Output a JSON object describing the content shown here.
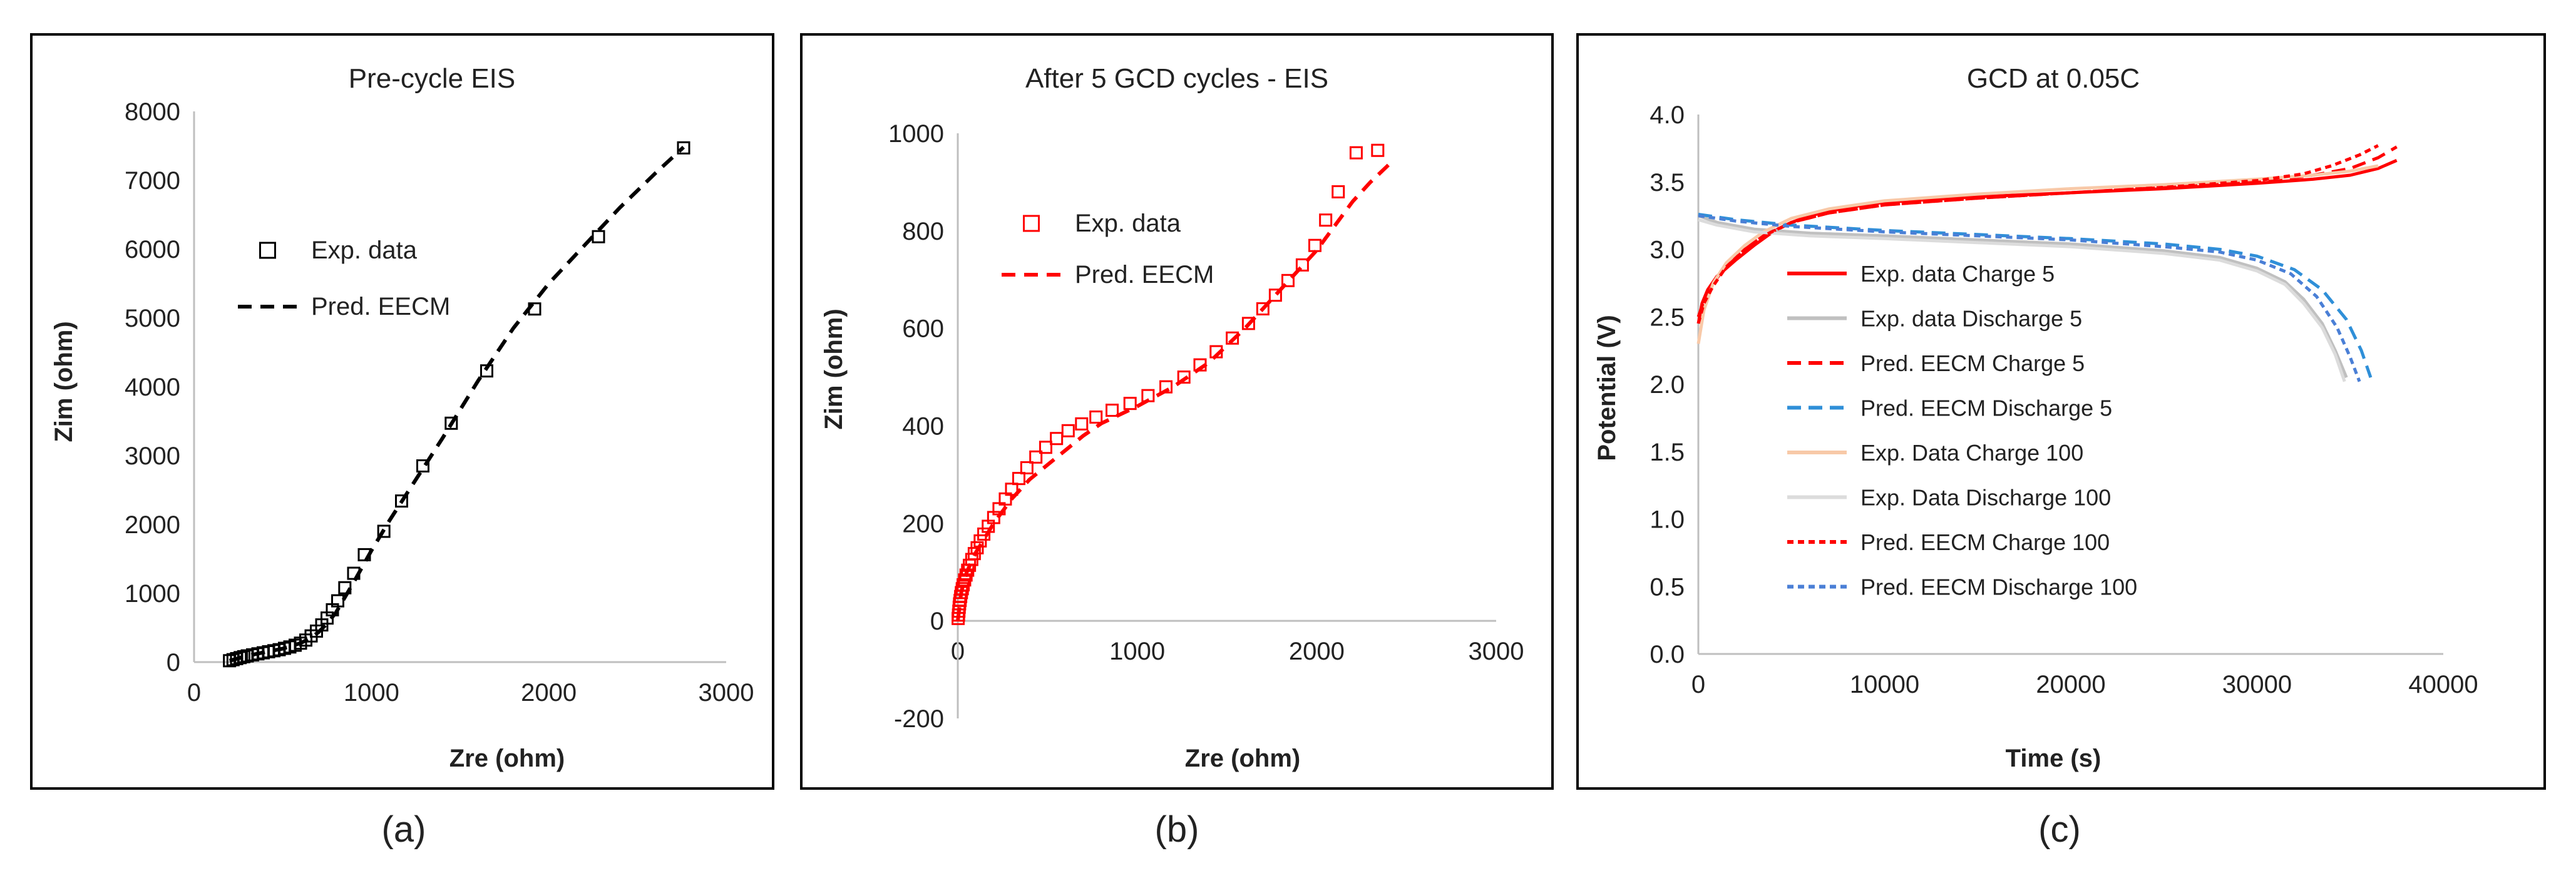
{
  "panel_labels": [
    "(a)",
    "(b)",
    "(c)"
  ],
  "chart_data": [
    {
      "type": "scatter",
      "title": "Pre-cycle EIS",
      "xlabel": "Zre (ohm)",
      "ylabel": "Zim (ohm)",
      "xlim": [
        0,
        3000
      ],
      "ylim": [
        0,
        8000
      ],
      "xticks": [
        0,
        1000,
        2000,
        3000
      ],
      "yticks": [
        0,
        1000,
        2000,
        3000,
        4000,
        5000,
        6000,
        7000,
        8000
      ],
      "legend_position": "upper-left",
      "series": [
        {
          "name": "Exp. data",
          "kind": "markers",
          "color": "#000000",
          "x": [
            200,
            220,
            240,
            260,
            280,
            300,
            330,
            360,
            390,
            420,
            450,
            480,
            510,
            540,
            570,
            600,
            630,
            660,
            690,
            720,
            750,
            780,
            810,
            850,
            900,
            960,
            1070,
            1170,
            1290,
            1450,
            1650,
            1920,
            2280,
            2760
          ],
          "y": [
            20,
            35,
            50,
            65,
            78,
            90,
            105,
            120,
            135,
            150,
            165,
            180,
            200,
            220,
            245,
            275,
            320,
            380,
            450,
            540,
            640,
            760,
            890,
            1080,
            1290,
            1560,
            1900,
            2340,
            2850,
            3470,
            4230,
            5130,
            6180,
            7470
          ]
        },
        {
          "name": "Pred. EECM",
          "kind": "dashed-line",
          "color": "#000000",
          "x": [
            200,
            300,
            400,
            500,
            600,
            650,
            700,
            750,
            800,
            900,
            1000,
            1100,
            1200,
            1400,
            1600,
            1800,
            2000,
            2200,
            2400,
            2600,
            2760
          ],
          "y": [
            20,
            90,
            145,
            195,
            275,
            340,
            430,
            560,
            720,
            1160,
            1620,
            2050,
            2450,
            3250,
            4080,
            4850,
            5500,
            6050,
            6600,
            7100,
            7480
          ]
        }
      ]
    },
    {
      "type": "scatter",
      "title": "After 5 GCD cycles - EIS",
      "xlabel": "Zre (ohm)",
      "ylabel": "Zim (ohm)",
      "xlim": [
        0,
        3000
      ],
      "ylim": [
        -200,
        1000
      ],
      "xticks": [
        0,
        1000,
        2000,
        3000
      ],
      "yticks": [
        -200,
        0,
        200,
        400,
        600,
        800,
        1000
      ],
      "legend_position": "upper-left",
      "series": [
        {
          "name": "Exp. data",
          "kind": "markers",
          "color": "#ff0000",
          "x": [
            2,
            4,
            6,
            8,
            10,
            13,
            16,
            20,
            25,
            30,
            38,
            46,
            55,
            65,
            78,
            92,
            108,
            125,
            145,
            170,
            200,
            230,
            265,
            300,
            340,
            385,
            435,
            490,
            550,
            615,
            690,
            770,
            860,
            960,
            1060,
            1160,
            1260,
            1350,
            1440,
            1530,
            1620,
            1700,
            1770,
            1840,
            1920,
            1990,
            2050,
            2120,
            2220,
            2340
          ],
          "y": [
            5,
            12,
            20,
            28,
            35,
            42,
            50,
            58,
            66,
            74,
            84,
            94,
            104,
            114,
            126,
            138,
            150,
            164,
            178,
            194,
            212,
            230,
            250,
            270,
            292,
            314,
            336,
            356,
            374,
            390,
            404,
            418,
            432,
            446,
            462,
            480,
            500,
            525,
            552,
            580,
            610,
            640,
            668,
            698,
            730,
            770,
            822,
            880,
            960,
            965
          ]
        },
        {
          "name": "Pred. EECM",
          "kind": "dashed-line",
          "color": "#ff0000",
          "x": [
            0,
            20,
            50,
            100,
            150,
            200,
            300,
            400,
            500,
            600,
            700,
            800,
            1000,
            1200,
            1400,
            1600,
            1800,
            2000,
            2100,
            2200,
            2300,
            2400
          ],
          "y": [
            0,
            60,
            100,
            140,
            170,
            200,
            250,
            290,
            320,
            350,
            380,
            405,
            440,
            480,
            530,
            600,
            680,
            760,
            810,
            860,
            900,
            935
          ]
        }
      ]
    },
    {
      "type": "line",
      "title": "GCD at 0.05C",
      "xlabel": "Time (s)",
      "ylabel": "Potential (V)",
      "xlim": [
        0,
        40000
      ],
      "ylim": [
        0,
        4
      ],
      "xticks": [
        0,
        10000,
        20000,
        30000,
        40000
      ],
      "yticks": [
        "0.0",
        "0.5",
        "1.0",
        "1.5",
        "2.0",
        "2.5",
        "3.0",
        "3.5",
        "4.0"
      ],
      "legend_position": "lower-left",
      "series": [
        {
          "name": "Exp. data Charge 5",
          "color": "#ff0000",
          "dash": "solid",
          "x": [
            0,
            200,
            500,
            1000,
            1500,
            2000,
            3000,
            4000,
            5000,
            6000,
            8000,
            10000,
            15000,
            20000,
            25000,
            30000,
            33000,
            35000,
            36500,
            37500
          ],
          "y": [
            2.45,
            2.6,
            2.7,
            2.8,
            2.86,
            2.92,
            3.03,
            3.13,
            3.2,
            3.25,
            3.31,
            3.35,
            3.39,
            3.42,
            3.45,
            3.49,
            3.52,
            3.55,
            3.6,
            3.66
          ]
        },
        {
          "name": "Exp. data Discharge 5",
          "color": "#c0c0c0",
          "dash": "solid",
          "x": [
            0,
            1000,
            3000,
            6000,
            10000,
            15000,
            20000,
            25000,
            28000,
            30000,
            31500,
            32500,
            33500,
            34200,
            34800
          ],
          "y": [
            3.25,
            3.2,
            3.15,
            3.12,
            3.1,
            3.07,
            3.04,
            2.99,
            2.94,
            2.86,
            2.76,
            2.63,
            2.45,
            2.25,
            2.05
          ]
        },
        {
          "name": "Pred. EECM Charge 5",
          "color": "#ff0000",
          "dash": "long",
          "x": [
            0,
            300,
            800,
            1500,
            2500,
            3500,
            5000,
            7000,
            10000,
            15000,
            20000,
            25000,
            30000,
            33000,
            35000,
            36500,
            37500
          ],
          "y": [
            2.5,
            2.62,
            2.75,
            2.88,
            3.0,
            3.1,
            3.2,
            3.27,
            3.33,
            3.38,
            3.42,
            3.46,
            3.5,
            3.55,
            3.6,
            3.68,
            3.76
          ]
        },
        {
          "name": "Pred. EECM Discharge 5",
          "color": "#2f8fd8",
          "dash": "long",
          "x": [
            0,
            2000,
            5000,
            10000,
            15000,
            20000,
            25000,
            28000,
            30000,
            32000,
            33500,
            34800,
            35600,
            36100
          ],
          "y": [
            3.26,
            3.22,
            3.18,
            3.14,
            3.11,
            3.08,
            3.04,
            3.0,
            2.95,
            2.85,
            2.7,
            2.48,
            2.25,
            2.05
          ]
        },
        {
          "name": "Exp. Data Charge 100",
          "color": "#f8c9a8",
          "dash": "solid",
          "x": [
            0,
            300,
            800,
            1500,
            2500,
            3500,
            5000,
            7000,
            10000,
            15000,
            20000,
            25000,
            30000,
            33000,
            35000,
            36500
          ],
          "y": [
            2.3,
            2.55,
            2.75,
            2.9,
            3.03,
            3.13,
            3.23,
            3.3,
            3.36,
            3.41,
            3.45,
            3.48,
            3.52,
            3.55,
            3.58,
            3.62
          ]
        },
        {
          "name": "Exp. Data Discharge 100",
          "color": "#dcdcdc",
          "dash": "solid",
          "x": [
            0,
            1000,
            3000,
            6000,
            10000,
            15000,
            20000,
            25000,
            28000,
            30000,
            31500,
            32500,
            33500,
            34200,
            34700
          ],
          "y": [
            3.22,
            3.18,
            3.13,
            3.1,
            3.08,
            3.05,
            3.02,
            2.97,
            2.92,
            2.84,
            2.74,
            2.6,
            2.42,
            2.22,
            2.02
          ]
        },
        {
          "name": "Pred. EECM Charge 100",
          "color": "#ff0000",
          "dash": "short",
          "x": [
            0,
            300,
            800,
            1500,
            2500,
            3500,
            5000,
            7000,
            10000,
            15000,
            20000,
            25000,
            30000,
            32500,
            34000,
            35500,
            36500
          ],
          "y": [
            2.45,
            2.6,
            2.73,
            2.87,
            3.0,
            3.1,
            3.2,
            3.27,
            3.33,
            3.38,
            3.42,
            3.46,
            3.51,
            3.56,
            3.62,
            3.7,
            3.77
          ]
        },
        {
          "name": "Pred. EECM Discharge 100",
          "color": "#4a7fd6",
          "dash": "short",
          "x": [
            0,
            2000,
            5000,
            10000,
            15000,
            20000,
            25000,
            28000,
            30000,
            31800,
            33200,
            34300,
            35000,
            35500
          ],
          "y": [
            3.25,
            3.21,
            3.17,
            3.13,
            3.1,
            3.07,
            3.02,
            2.98,
            2.92,
            2.82,
            2.65,
            2.42,
            2.2,
            2.02
          ]
        }
      ]
    }
  ]
}
